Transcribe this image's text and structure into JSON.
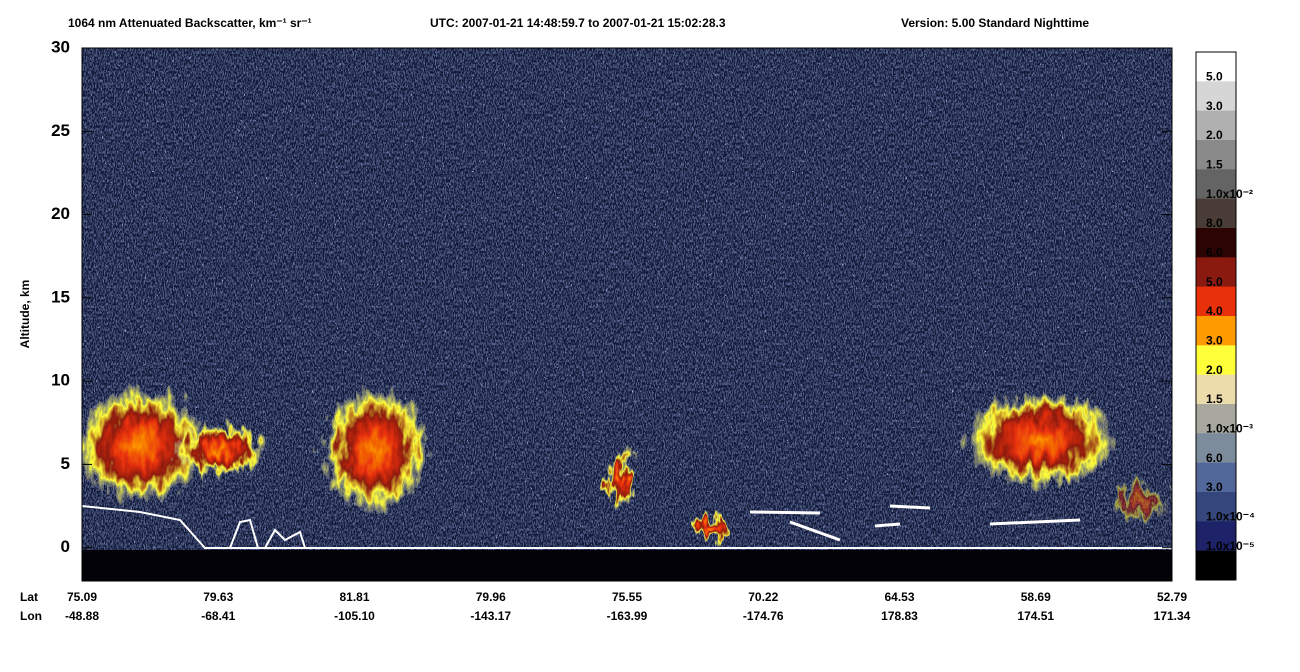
{
  "chart_data": {
    "type": "heatmap",
    "title": "1064 nm Attenuated Backscatter, km⁻¹ sr⁻¹",
    "utc": "UTC:  2007-01-21 14:48:59.7  to  2007-01-21 15:02:28.3",
    "version": "Version: 5.00  Standard  Nighttime",
    "ylabel": "Altitude, km",
    "ylim": [
      -2,
      30
    ],
    "yticks": [
      0,
      5,
      10,
      15,
      20,
      25,
      30
    ],
    "lat_label": "Lat",
    "lon_label": "Lon",
    "lat": [
      "75.09",
      "79.63",
      "81.81",
      "79.96",
      "75.55",
      "70.22",
      "64.53",
      "58.69",
      "52.79"
    ],
    "lon": [
      "-48.88",
      "-68.41",
      "-105.10",
      "-143.17",
      "-163.99",
      "-174.76",
      "178.83",
      "174.51",
      "171.34"
    ],
    "colorbar": {
      "labels": [
        "5.0",
        "3.0",
        "2.0",
        "1.5",
        "1.0x10⁻²",
        "8.0",
        "6.0",
        "5.0",
        "4.0",
        "3.0",
        "2.0",
        "1.5",
        "1.0x10⁻³",
        "6.0",
        "3.0",
        "1.0x10⁻⁴",
        "1.0x10⁻⁵"
      ],
      "colors": [
        "#ffffff",
        "#d6d6d6",
        "#b0b0b0",
        "#8a8a8a",
        "#646464",
        "#4a3c36",
        "#2c0404",
        "#8a1a10",
        "#e8300a",
        "#ff9a00",
        "#ffff3a",
        "#ecdcac",
        "#a8a89e",
        "#7c8c9c",
        "#52689a",
        "#34467c",
        "#1e2268",
        "#000000"
      ]
    }
  }
}
